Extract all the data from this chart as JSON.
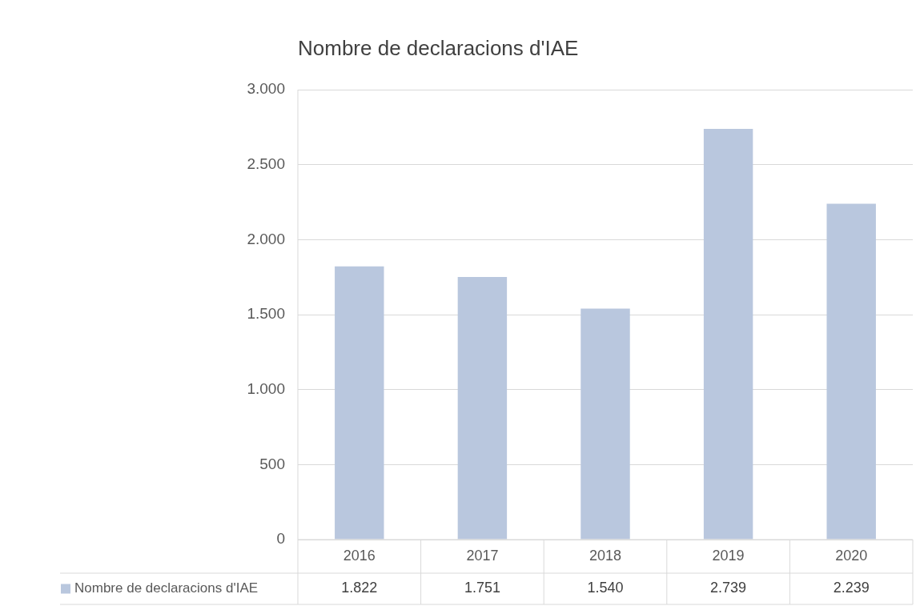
{
  "chart_data": {
    "type": "bar",
    "title": "Nombre de declaracions d'IAE",
    "categories": [
      "2016",
      "2017",
      "2018",
      "2019",
      "2020"
    ],
    "series": [
      {
        "name": "Nombre de declaracions d'IAE",
        "color": "#b9c7de",
        "values": [
          1822,
          1751,
          1540,
          2739,
          2239
        ],
        "value_labels": [
          "1.822",
          "1.751",
          "1.540",
          "2.739",
          "2.239"
        ]
      }
    ],
    "ylim": [
      0,
      3000
    ],
    "yticks": [
      {
        "value": 0,
        "label": "0"
      },
      {
        "value": 500,
        "label": "500"
      },
      {
        "value": 1000,
        "label": "1.000"
      },
      {
        "value": 1500,
        "label": "1.500"
      },
      {
        "value": 2000,
        "label": "2.000"
      },
      {
        "value": 2500,
        "label": "2.500"
      },
      {
        "value": 3000,
        "label": "3.000"
      }
    ],
    "grid": "y",
    "legend": "bottom"
  }
}
